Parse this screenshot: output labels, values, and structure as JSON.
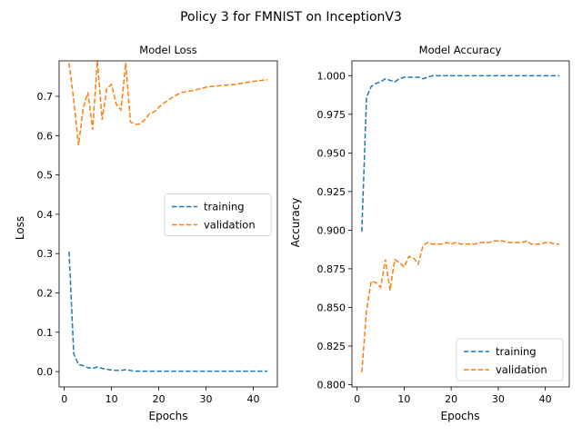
{
  "suptitle": "Policy 3 for FMNIST on InceptionV3",
  "colors": {
    "training": "#1f77b4",
    "validation": "#ff7f0e",
    "axis": "#000000"
  },
  "chart_data": [
    {
      "type": "line",
      "title": "Model Loss",
      "xlabel": "Epochs",
      "ylabel": "Loss",
      "xlim": [
        -1.1,
        45.1
      ],
      "ylim": [
        -0.039,
        0.79
      ],
      "xticks": [
        0,
        10,
        20,
        30,
        40
      ],
      "yticks": [
        0.0,
        0.1,
        0.2,
        0.3,
        0.4,
        0.5,
        0.6,
        0.7
      ],
      "ytick_labels": [
        "0.0",
        "0.1",
        "0.2",
        "0.3",
        "0.4",
        "0.5",
        "0.6",
        "0.7"
      ],
      "grid": false,
      "legend": "center-right",
      "x": [
        1,
        2,
        3,
        4,
        5,
        6,
        7,
        8,
        9,
        10,
        11,
        12,
        13,
        14,
        15,
        16,
        17,
        18,
        19,
        20,
        21,
        22,
        23,
        24,
        25,
        26,
        27,
        28,
        29,
        30,
        31,
        32,
        33,
        34,
        35,
        36,
        37,
        38,
        39,
        40,
        41,
        42,
        43
      ],
      "series": [
        {
          "name": "training",
          "values": [
            0.305,
            0.045,
            0.018,
            0.015,
            0.01,
            0.008,
            0.012,
            0.008,
            0.006,
            0.004,
            0.003,
            0.003,
            0.005,
            0.003,
            0.001,
            0.001,
            0.001,
            0.001,
            0.001,
            0.001,
            0.001,
            0.001,
            0.001,
            0.001,
            0.001,
            0.001,
            0.001,
            0.001,
            0.001,
            0.001,
            0.001,
            0.001,
            0.001,
            0.001,
            0.001,
            0.001,
            0.001,
            0.001,
            0.001,
            0.001,
            0.001,
            0.001,
            0.001
          ]
        },
        {
          "name": "validation",
          "values": [
            0.785,
            0.69,
            0.575,
            0.67,
            0.71,
            0.615,
            0.79,
            0.64,
            0.72,
            0.73,
            0.68,
            0.665,
            0.785,
            0.635,
            0.628,
            0.63,
            0.64,
            0.655,
            0.66,
            0.672,
            0.682,
            0.69,
            0.698,
            0.705,
            0.71,
            0.712,
            0.714,
            0.717,
            0.72,
            0.723,
            0.725,
            0.726,
            0.727,
            0.728,
            0.729,
            0.73,
            0.732,
            0.734,
            0.736,
            0.738,
            0.739,
            0.741,
            0.742
          ]
        }
      ]
    },
    {
      "type": "line",
      "title": "Model Accuracy",
      "xlabel": "Epochs",
      "ylabel": "Accuracy",
      "xlim": [
        -1.1,
        45.1
      ],
      "ylim": [
        0.7985,
        1.0096
      ],
      "xticks": [
        0,
        10,
        20,
        30,
        40
      ],
      "yticks": [
        0.8,
        0.825,
        0.85,
        0.875,
        0.9,
        0.925,
        0.95,
        0.975,
        1.0
      ],
      "ytick_labels": [
        "0.800",
        "0.825",
        "0.850",
        "0.875",
        "0.900",
        "0.925",
        "0.950",
        "0.975",
        "1.000"
      ],
      "grid": false,
      "legend": "lower-right",
      "x": [
        1,
        2,
        3,
        4,
        5,
        6,
        7,
        8,
        9,
        10,
        11,
        12,
        13,
        14,
        15,
        16,
        17,
        18,
        19,
        20,
        21,
        22,
        23,
        24,
        25,
        26,
        27,
        28,
        29,
        30,
        31,
        32,
        33,
        34,
        35,
        36,
        37,
        38,
        39,
        40,
        41,
        42,
        43
      ],
      "series": [
        {
          "name": "training",
          "values": [
            0.899,
            0.986,
            0.993,
            0.995,
            0.996,
            0.998,
            0.997,
            0.996,
            0.998,
            0.999,
            0.999,
            0.999,
            0.999,
            0.998,
            0.999,
            1.0,
            1.0,
            1.0,
            1.0,
            1.0,
            1.0,
            1.0,
            1.0,
            1.0,
            1.0,
            1.0,
            1.0,
            1.0,
            1.0,
            1.0,
            1.0,
            1.0,
            1.0,
            1.0,
            1.0,
            1.0,
            1.0,
            1.0,
            1.0,
            1.0,
            1.0,
            1.0,
            1.0
          ]
        },
        {
          "name": "validation",
          "values": [
            0.808,
            0.848,
            0.867,
            0.866,
            0.863,
            0.881,
            0.861,
            0.881,
            0.879,
            0.876,
            0.883,
            0.882,
            0.878,
            0.89,
            0.892,
            0.891,
            0.891,
            0.891,
            0.892,
            0.891,
            0.892,
            0.891,
            0.891,
            0.891,
            0.891,
            0.892,
            0.892,
            0.892,
            0.893,
            0.893,
            0.893,
            0.892,
            0.892,
            0.892,
            0.892,
            0.893,
            0.891,
            0.891,
            0.891,
            0.892,
            0.892,
            0.891,
            0.891
          ]
        }
      ]
    }
  ]
}
